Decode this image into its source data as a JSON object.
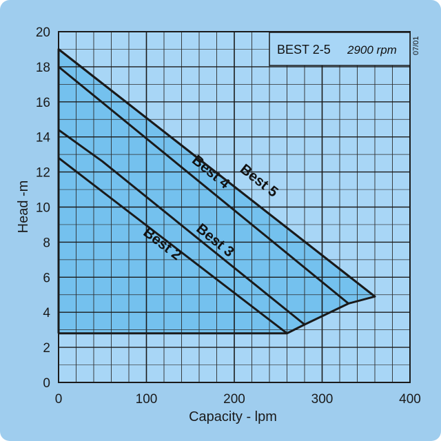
{
  "chart_data": {
    "type": "line",
    "title": "BEST 2-5",
    "subtitle": "2900 rpm",
    "stamp": "07/01",
    "xlabel": "Capacity - lpm",
    "ylabel": "Head -m",
    "xlim": [
      0,
      400
    ],
    "ylim": [
      0,
      20
    ],
    "xticks": [
      0,
      100,
      200,
      300,
      400
    ],
    "yticks": [
      0,
      2,
      4,
      6,
      8,
      10,
      12,
      14,
      16,
      18,
      20
    ],
    "grid": true,
    "series": [
      {
        "name": "Best 2",
        "x": [
          0,
          260
        ],
        "y": [
          12.8,
          2.8
        ]
      },
      {
        "name": "Best 3",
        "x": [
          0,
          50,
          280
        ],
        "y": [
          14.4,
          12.6,
          3.3
        ]
      },
      {
        "name": "Best 4",
        "x": [
          0,
          330
        ],
        "y": [
          18.0,
          4.5
        ]
      },
      {
        "name": "Best 5",
        "x": [
          0,
          360
        ],
        "y": [
          19.0,
          4.9
        ]
      }
    ],
    "operating_envelope": {
      "x": [
        0,
        0,
        360,
        330,
        280,
        260,
        0
      ],
      "y": [
        2.8,
        19.0,
        4.9,
        4.5,
        3.3,
        2.8,
        2.8
      ]
    }
  },
  "colors": {
    "page_background": "#9fcdee",
    "plot_background": "#a8d6f6",
    "envelope_fill": "#74c1ee",
    "grid_minor": "#2b2b2b",
    "grid_major": "#1a1a1a",
    "curve": "#1a1a1a"
  }
}
